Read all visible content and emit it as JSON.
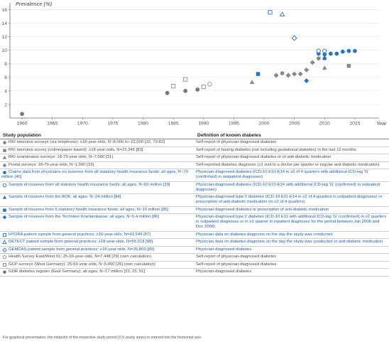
{
  "chart_data": {
    "type": "scatter",
    "ylabel": "Prevalence (%)",
    "xlabel": "Year",
    "xlim": [
      1958,
      2019
    ],
    "ylim": [
      0,
      17
    ],
    "x_ticks": [
      "1960",
      "1965",
      "1970",
      "1975",
      "1980",
      "1985",
      "1990",
      "1995",
      "2000",
      "2005",
      "2010",
      "2015"
    ],
    "y_ticks": [
      "2",
      "4",
      "6",
      "8",
      "10",
      "12",
      "14",
      "16"
    ],
    "series": [
      {
        "id": "gdr",
        "marker": "circle-filled",
        "color": "#777777",
        "points": [
          [
            1960,
            0.6
          ],
          [
            1984,
            3.7
          ],
          [
            1987,
            4.0
          ],
          [
            1989,
            4.2
          ]
        ]
      },
      {
        "id": "rki_tel",
        "marker": "circle-filled",
        "color": "#888888",
        "points": [
          [
            2003,
            6.6
          ],
          [
            2009,
            8.8
          ],
          [
            2010,
            8.8
          ]
        ]
      },
      {
        "id": "rki_online",
        "marker": "square-filled",
        "color": "#888888",
        "points": [
          [
            2014,
            7.7
          ]
        ]
      },
      {
        "id": "rki_exam",
        "marker": "triangle-filled",
        "color": "#888888",
        "points": [
          [
            1998,
            5.3
          ],
          [
            2010,
            7.4
          ]
        ]
      },
      {
        "id": "postal",
        "marker": "diamond-filled",
        "color": "#888888",
        "points": [
          [
            2002,
            6.3
          ],
          [
            2004,
            6.3
          ],
          [
            2005,
            6.5
          ],
          [
            2006,
            6.5
          ],
          [
            2007,
            7.1
          ],
          [
            2008,
            8.2
          ]
        ]
      },
      {
        "id": "claims_all",
        "marker": "circle-filled",
        "color": "#2a73c0",
        "points": [
          [
            2009,
            9.5
          ],
          [
            2010,
            9.4
          ],
          [
            2011,
            9.5
          ],
          [
            2012,
            9.5
          ],
          [
            2013,
            9.8
          ],
          [
            2014,
            9.9
          ],
          [
            2015,
            9.9
          ]
        ]
      },
      {
        "id": "sample_all",
        "marker": "circle-open",
        "color": "#2a73c0",
        "points": [
          [
            2009,
            9.9
          ],
          [
            2010,
            9.9
          ]
        ]
      },
      {
        "id": "aok",
        "marker": "triangle-filled",
        "color": "#2a73c0",
        "points": [
          [
            2010,
            8.9
          ]
        ]
      },
      {
        "id": "six_funds",
        "marker": "square-filled",
        "color": "#2a73c0",
        "points": [
          [
            1999,
            6.5
          ]
        ]
      },
      {
        "id": "tk",
        "marker": "diamond-filled",
        "color": "#2a73c0",
        "points": [
          [
            2007,
            5.5
          ]
        ]
      },
      {
        "id": "hydra",
        "marker": "square-open",
        "color": "#2a73c0",
        "points": [
          [
            2001,
            15.6
          ]
        ]
      },
      {
        "id": "detect",
        "marker": "triangle-open",
        "color": "#2a73c0",
        "points": [
          [
            2003,
            15.3
          ]
        ]
      },
      {
        "id": "gemcas",
        "marker": "diamond-open",
        "color": "#2a73c0",
        "points": [
          [
            2005,
            11.8
          ]
        ]
      },
      {
        "id": "hs_eastwest",
        "marker": "circle-open",
        "color": "#888888",
        "points": [
          [
            1991,
            5.0
          ]
        ]
      },
      {
        "id": "gcp",
        "marker": "square-open",
        "color": "#888888",
        "points": [
          [
            1985,
            4.7
          ],
          [
            1987,
            5.7
          ],
          [
            1990,
            4.6
          ]
        ]
      }
    ]
  },
  "table": {
    "headers": [
      "Study population",
      "Definition of known diabetes"
    ],
    "rows": [
      {
        "marker": "circle-filled",
        "color": "#888888",
        "tone": "grey",
        "study": "RKI interview surveys (via telephone): ≥18-year-olds, N~8,000 to~22,000 [32, 79-82]",
        "definition": "Self-report of physician-diagnosed diabetes"
      },
      {
        "marker": "square-filled",
        "color": "#888888",
        "tone": "grey",
        "study": "RKI interview survey (online/paper-based): ≥18-year-olds, N=23,345 [83]",
        "definition": "Self-report of having diabetes (not including gestational diabetes) in the last 12 months"
      },
      {
        "marker": "triangle-filled",
        "color": "#888888",
        "tone": "grey",
        "study": "RKI examination surveys: 18-79-year-olds, N~7,000 [31]",
        "definition": "Self-report of physician-diagnosed diabetes or of anti-diabetic medication"
      },
      {
        "marker": "diamond-filled",
        "color": "#888888",
        "tone": "grey",
        "study": "Postal surveys: 18-79-year-olds, N~1,500 [33]",
        "definition": "Self-reported diabetes diagnosis (≥1 visit to a doctor per quarter or regular anti-diabetic medication)"
      },
      {
        "marker": "circle-filled",
        "color": "#2a73c0",
        "tone": "blue",
        "study": "Claims data from physicians on insurees from all statutory health insurance funds: all ages, N~70 million [40]",
        "definition": "Physician-diagnosed diabetes (ICD-10 E10-E14 in ≥2 of 4 quarters with additional ICD-tag 'G' (confirmed) in outpatient diagnoses)"
      },
      {
        "marker": "circle-open",
        "color": "#2a73c0",
        "tone": "blue",
        "study": "Sample of insurees from all statutory health insurance funds: all ages, N~65 million [39]",
        "definition": "Physician-diagnosed diabetes (ICD-10 E10-E14 with additional ICD-tag 'G' (confirmed) in outpatient diagnoses)"
      },
      {
        "marker": "triangle-filled",
        "color": "#2a73c0",
        "tone": "blue",
        "study": "Sample of insurees from the AOK: all ages, N~24 million [84]",
        "definition": "Physician-diagnosed type 2 diabetes (ICD-10 E11-E14 in ≥2 of 4 quarters in outpatient diagnoses) or prescription of anti-diabetic medication (in ≥2 of 4 quarters)"
      },
      {
        "marker": "square-filled",
        "color": "#2a73c0",
        "tone": "blue",
        "study": "Sample of insurees from 6 statutory health insurance funds: all ages, N~15 million [85]",
        "definition": "Physician-diagnosed diabetes or prescription of anti-diabetic medication"
      },
      {
        "marker": "diamond-filled",
        "color": "#2a73c0",
        "tone": "blue",
        "study": "Sample of insurees from the Techniker Krankenkasse: all ages, N~5.4 million [86]",
        "definition": "Physician-diagnosed type 2 diabetes (ICD-10 E11 with additional ICD-tag 'G' (confirmed) in ≥2 quarters in outpatient diagnoses or in ≥1 quarter in inpatient diagnoses for the period between Jan 2006 and Dec 2008)"
      },
      {
        "marker": "square-open",
        "color": "#2a73c0",
        "tone": "blue",
        "study": "HYDRA patient sample from general practices: ≥16-year-olds, N=43,549 [87]",
        "definition": "Physician data on diabetes diagnosis on the day the study was conducted"
      },
      {
        "marker": "triangle-open",
        "color": "#2a73c0",
        "tone": "blue",
        "study": "DETECT patient sample from general practices: ≥18-year-olds, N=55,518 [88]",
        "definition": "Physician data on diabetes diagnosis on the day the study was conducted or anti-diabetic medication"
      },
      {
        "marker": "diamond-open",
        "color": "#2a73c0",
        "tone": "blue",
        "study": "GEMCAS patient sample from general practices: ≥18-year-olds, N=35,869 [89]",
        "definition": "Physician-diagnosed diabetes"
      },
      {
        "marker": "circle-open",
        "color": "#888888",
        "tone": "grey",
        "study": "Health Survey East/West 91: 25-69-year-olds, N=7,448 [29] (own calculation)",
        "definition": "Self-report of physician-diagnosed diabetes"
      },
      {
        "marker": "square-open",
        "color": "#888888",
        "tone": "grey",
        "study": "GCP surveys (West Germany): 25-69-year-olds, N~5,000 [26] (own calculation)",
        "definition": "Self-report of physician-diagnosed diabetes"
      },
      {
        "marker": "circle-filled",
        "color": "#777777",
        "tone": "grey",
        "study": "GDR diabetes register (East Germany): all ages, N~17 million [22, 23, 51]",
        "definition": "Physician-diagnosed diabetes"
      }
    ]
  },
  "footnote": "For graphical presentation, the midpoint of the respective study period (0.5 yearly steps) is entered into the horizontal axis."
}
